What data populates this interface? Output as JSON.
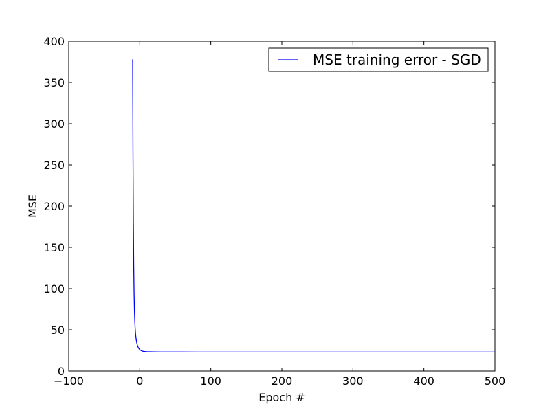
{
  "chart_data": {
    "type": "line",
    "title": "",
    "xlabel": "Epoch #",
    "ylabel": "MSE",
    "xlim": [
      -100,
      500
    ],
    "ylim": [
      0,
      400
    ],
    "xticks": [
      -100,
      0,
      100,
      200,
      300,
      400,
      500
    ],
    "xtick_labels": [
      "−100",
      "0",
      "100",
      "200",
      "300",
      "400",
      "500"
    ],
    "yticks": [
      0,
      50,
      100,
      150,
      200,
      250,
      300,
      350,
      400
    ],
    "ytick_labels": [
      "0",
      "50",
      "100",
      "150",
      "200",
      "250",
      "300",
      "350",
      "400"
    ],
    "grid": false,
    "legend_position": "top-right",
    "series": [
      {
        "name": "MSE training error - SGD",
        "color": "#0000ff",
        "x": [
          -10,
          -9.5,
          -9,
          -8.5,
          -8,
          -7.5,
          -7,
          -6.5,
          -6,
          -5.5,
          -5,
          -4.5,
          -4,
          -3.5,
          -3,
          -2.5,
          -2,
          -1.5,
          -1,
          -0.5,
          0,
          1,
          2,
          3,
          4,
          5,
          6,
          8,
          10,
          15,
          20,
          30,
          40,
          60,
          80,
          100,
          150,
          200,
          300,
          400,
          500
        ],
        "y": [
          378,
          260,
          180,
          128,
          95,
          74,
          61,
          52,
          46,
          41.5,
          38,
          35.5,
          33.5,
          31.8,
          30.5,
          29.4,
          28.5,
          27.7,
          27,
          26.5,
          26,
          25.3,
          24.8,
          24.4,
          24.1,
          23.9,
          23.7,
          23.5,
          23.4,
          23.3,
          23.2,
          23.15,
          23.1,
          23.08,
          23.05,
          23.03,
          23.02,
          23.01,
          23.0,
          23.0,
          23.0
        ]
      }
    ]
  }
}
